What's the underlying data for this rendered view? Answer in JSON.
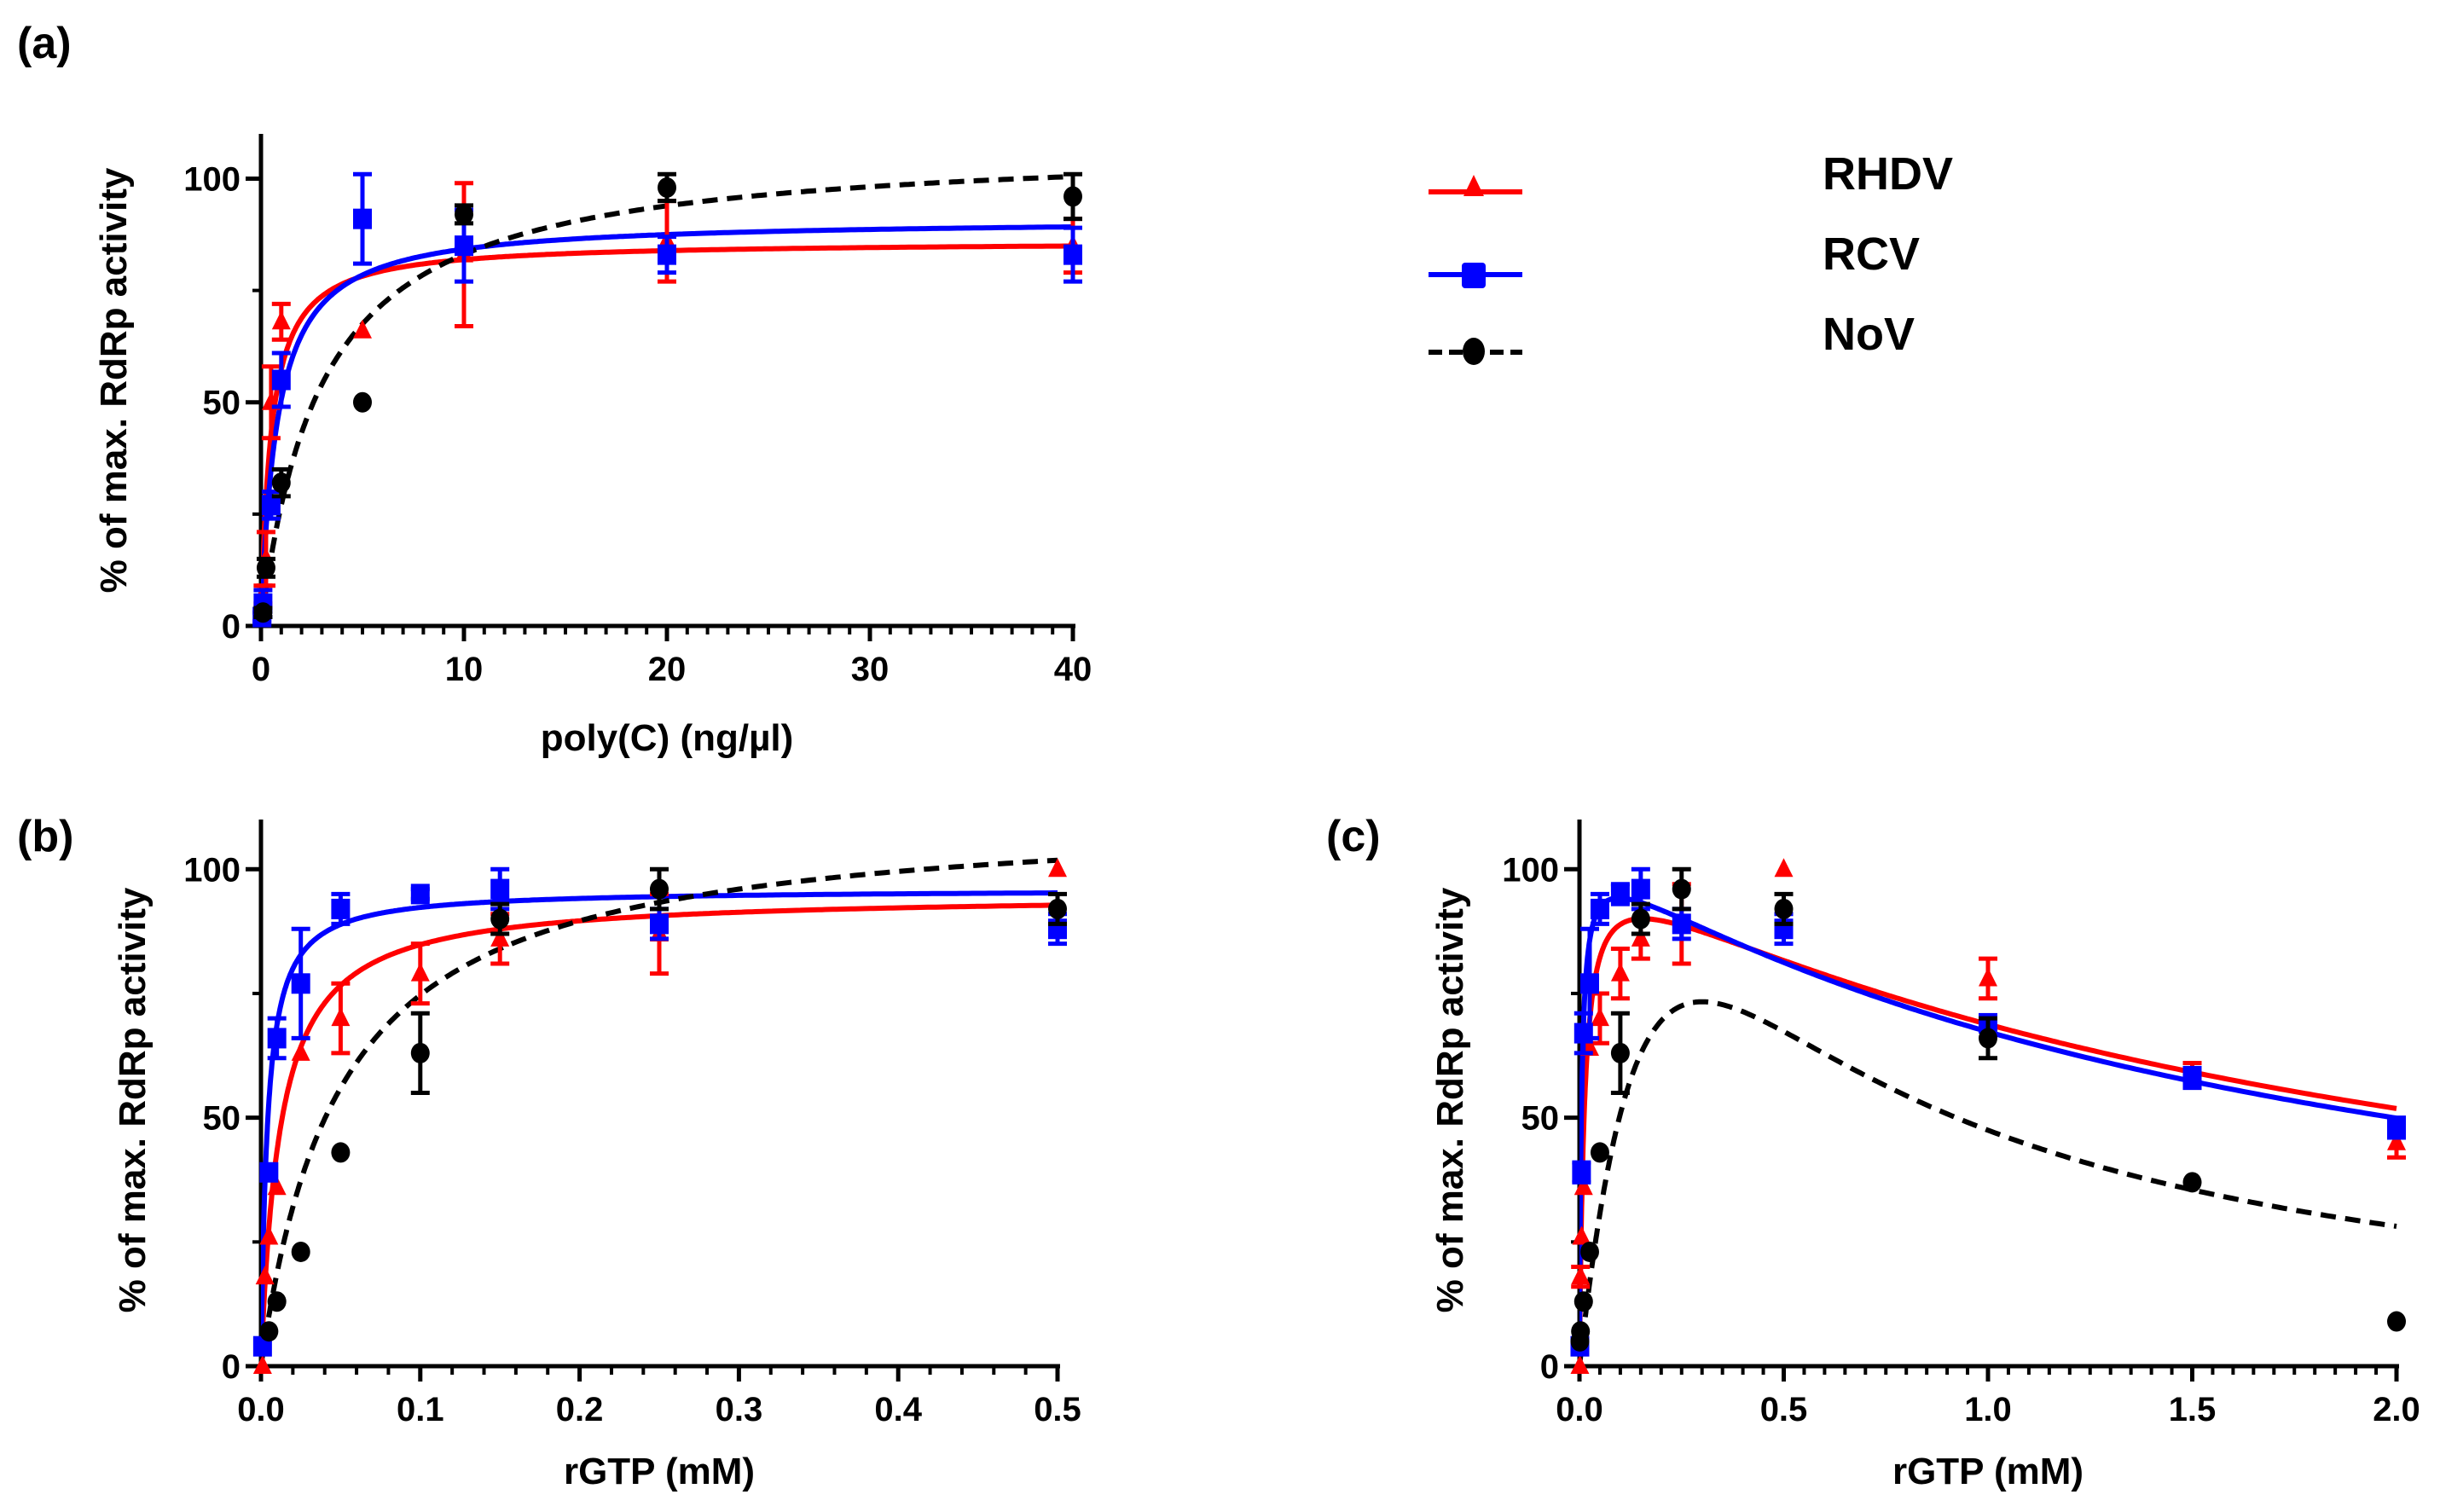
{
  "legend": {
    "placement": "top-right",
    "entries": [
      {
        "name": "RHDV",
        "color": "#ff0000",
        "marker": "triangle",
        "line": "solid"
      },
      {
        "name": "RCV",
        "color": "#0000ff",
        "marker": "square",
        "line": "solid"
      },
      {
        "name": "NoV",
        "color": "#000000",
        "marker": "circle",
        "line": "dashed"
      }
    ]
  },
  "chart_data": [
    {
      "panel": "(a)",
      "type": "scatter",
      "title": "",
      "xlabel": "poly(C) (ng/µl)",
      "ylabel": "% of max. RdRp activity",
      "xlim": [
        0,
        40
      ],
      "ylim": [
        0,
        110
      ],
      "xticks": [
        0,
        10,
        20,
        30,
        40
      ],
      "xtick_labels": [
        "0",
        "10",
        "20",
        "30",
        "40"
      ],
      "yticks": [
        0,
        50,
        100
      ],
      "ytick_labels": [
        "0",
        "50",
        "100"
      ],
      "x_minor_step": 1,
      "y_minor_step": 25,
      "grid": false,
      "series": [
        {
          "name": "RHDV",
          "color": "#ff0000",
          "marker": "triangle",
          "dash": false,
          "points": [
            [
              0.1,
              7,
              2
            ],
            [
              0.25,
              15,
              6
            ],
            [
              0.5,
              50,
              8
            ],
            [
              1,
              68,
              4
            ],
            [
              5,
              66,
              0
            ],
            [
              10,
              83,
              16
            ],
            [
              20,
              86,
              9
            ],
            [
              40,
              85,
              6
            ]
          ],
          "fit": {
            "model": "hyperbola",
            "vmax": 86,
            "km": 0.5
          }
        },
        {
          "name": "RCV",
          "color": "#0000ff",
          "marker": "square",
          "dash": false,
          "points": [
            [
              0.05,
              2,
              1
            ],
            [
              0.1,
              5,
              3
            ],
            [
              0.5,
              27,
              3
            ],
            [
              1,
              55,
              6
            ],
            [
              5,
              91,
              10
            ],
            [
              10,
              85,
              8
            ],
            [
              20,
              83,
              4
            ],
            [
              40,
              83,
              6
            ]
          ],
          "fit": {
            "model": "hyperbola",
            "vmax": 91,
            "km": 0.8
          }
        },
        {
          "name": "NoV",
          "color": "#000000",
          "marker": "circle",
          "dash": true,
          "points": [
            [
              0.1,
              3,
              1
            ],
            [
              0.25,
              13,
              2
            ],
            [
              1,
              32,
              3
            ],
            [
              5,
              50,
              0
            ],
            [
              10,
              92,
              2
            ],
            [
              20,
              98,
              3
            ],
            [
              40,
              96,
              5
            ]
          ],
          "fit": {
            "model": "hyperbola",
            "vmax": 108,
            "km": 3
          }
        }
      ]
    },
    {
      "panel": "(b)",
      "type": "scatter",
      "title": "",
      "xlabel": "rGTP (mM)",
      "ylabel": "% of max. RdRp activity",
      "xlim": [
        0,
        0.5
      ],
      "ylim": [
        0,
        110
      ],
      "xticks": [
        0,
        0.1,
        0.2,
        0.3,
        0.4,
        0.5
      ],
      "xtick_labels": [
        "0.0",
        "0.1",
        "0.2",
        "0.3",
        "0.4",
        "0.5"
      ],
      "yticks": [
        0,
        50,
        100
      ],
      "ytick_labels": [
        "0",
        "50",
        "100"
      ],
      "x_minor_step": 0.02,
      "y_minor_step": 25,
      "grid": false,
      "series": [
        {
          "name": "RHDV",
          "color": "#ff0000",
          "marker": "triangle",
          "dash": false,
          "points": [
            [
              0.001,
              0,
              0
            ],
            [
              0.0025,
              18,
              0
            ],
            [
              0.005,
              26,
              0
            ],
            [
              0.01,
              36,
              0
            ],
            [
              0.025,
              63,
              0
            ],
            [
              0.05,
              70,
              7
            ],
            [
              0.1,
              79,
              6
            ],
            [
              0.15,
              86,
              5
            ],
            [
              0.25,
              87,
              8
            ],
            [
              0.5,
              100,
              0
            ]
          ],
          "fit": {
            "model": "hyperbola",
            "vmax": 95,
            "km": 0.012
          }
        },
        {
          "name": "RCV",
          "color": "#0000ff",
          "marker": "square",
          "dash": false,
          "points": [
            [
              0.001,
              4,
              0
            ],
            [
              0.005,
              39,
              0
            ],
            [
              0.01,
              66,
              4
            ],
            [
              0.025,
              77,
              11
            ],
            [
              0.05,
              92,
              3
            ],
            [
              0.1,
              95,
              1
            ],
            [
              0.15,
              96,
              4
            ],
            [
              0.25,
              89,
              3
            ],
            [
              0.5,
              88,
              3
            ]
          ],
          "fit": {
            "model": "hyperbola",
            "vmax": 96,
            "km": 0.004
          }
        },
        {
          "name": "NoV",
          "color": "#000000",
          "marker": "circle",
          "dash": true,
          "points": [
            [
              0.005,
              7,
              0
            ],
            [
              0.01,
              13,
              0
            ],
            [
              0.025,
              23,
              0
            ],
            [
              0.05,
              43,
              0
            ],
            [
              0.1,
              63,
              8
            ],
            [
              0.15,
              90,
              3
            ],
            [
              0.25,
              96,
              4
            ],
            [
              0.5,
              92,
              3
            ]
          ],
          "fit": {
            "model": "hyperbola",
            "vmax": 112,
            "km": 0.05
          }
        }
      ]
    },
    {
      "panel": "(c)",
      "type": "scatter",
      "title": "",
      "xlabel": "rGTP (mM)",
      "ylabel": "% of max. RdRp activity",
      "xlim": [
        0,
        2.0
      ],
      "ylim": [
        0,
        110
      ],
      "xticks": [
        0,
        0.5,
        1.0,
        1.5,
        2.0
      ],
      "xtick_labels": [
        "0.0",
        "0.5",
        "1.0",
        "1.5",
        "2.0"
      ],
      "yticks": [
        0,
        50,
        100
      ],
      "ytick_labels": [
        "0",
        "50",
        "100"
      ],
      "x_minor_step": 0.05,
      "y_minor_step": 25,
      "grid": false,
      "series": [
        {
          "name": "RHDV",
          "color": "#ff0000",
          "marker": "triangle",
          "dash": false,
          "points": [
            [
              0.001,
              0,
              0
            ],
            [
              0.0025,
              18,
              2
            ],
            [
              0.005,
              26,
              0
            ],
            [
              0.01,
              36,
              0
            ],
            [
              0.025,
              64,
              0
            ],
            [
              0.05,
              70,
              5
            ],
            [
              0.1,
              79,
              5
            ],
            [
              0.15,
              86,
              4
            ],
            [
              0.25,
              89,
              8
            ],
            [
              0.5,
              100,
              0
            ],
            [
              1.0,
              78,
              4
            ],
            [
              1.5,
              59,
              2
            ],
            [
              2.0,
              45,
              3
            ]
          ],
          "fit": {
            "model": "substrate-inhibition",
            "vmax": 104,
            "km": 0.012,
            "ki": 2.0
          }
        },
        {
          "name": "RCV",
          "color": "#0000ff",
          "marker": "square",
          "dash": false,
          "points": [
            [
              0.001,
              4,
              0
            ],
            [
              0.005,
              39,
              2
            ],
            [
              0.01,
              67,
              4
            ],
            [
              0.025,
              77,
              11
            ],
            [
              0.05,
              92,
              3
            ],
            [
              0.1,
              95,
              2
            ],
            [
              0.15,
              96,
              4
            ],
            [
              0.25,
              89,
              3
            ],
            [
              0.5,
              88,
              3
            ],
            [
              1.0,
              69,
              1
            ],
            [
              1.5,
              58,
              2
            ],
            [
              2.0,
              48,
              2
            ]
          ],
          "fit": {
            "model": "substrate-inhibition",
            "vmax": 104,
            "km": 0.005,
            "ki": 1.85
          }
        },
        {
          "name": "NoV",
          "color": "#000000",
          "marker": "circle",
          "dash": true,
          "points": [
            [
              0.001,
              5,
              0
            ],
            [
              0.0025,
              7,
              0
            ],
            [
              0.01,
              13,
              0
            ],
            [
              0.025,
              23,
              0
            ],
            [
              0.05,
              43,
              0
            ],
            [
              0.1,
              63,
              8
            ],
            [
              0.15,
              90,
              3
            ],
            [
              0.25,
              96,
              4
            ],
            [
              0.5,
              92,
              3
            ],
            [
              1.0,
              66,
              4
            ],
            [
              1.5,
              37,
              0
            ],
            [
              2.0,
              9,
              0
            ]
          ],
          "fit": {
            "model": "substrate-inhibition",
            "vmax": 220,
            "km": 0.3,
            "ki": 0.3
          }
        }
      ]
    }
  ]
}
